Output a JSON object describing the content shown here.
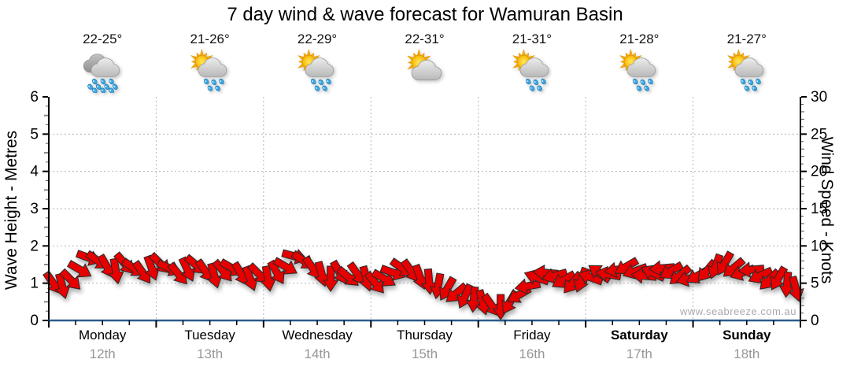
{
  "title": "7 day wind & wave forecast for Wamuran Basin",
  "watermark": "www.seabreeze.com.au",
  "left_axis": {
    "label": "Wave Height - Metres",
    "ticks": [
      0,
      1,
      2,
      3,
      4,
      5,
      6
    ],
    "max": 6
  },
  "right_axis": {
    "label": "Wind Speed - Knots",
    "ticks": [
      0,
      5,
      10,
      15,
      20,
      25,
      30
    ],
    "max": 30
  },
  "days": [
    {
      "label": "Monday",
      "date": "12th",
      "temp": "22-25°",
      "icon": "rain",
      "bold": false
    },
    {
      "label": "Tuesday",
      "date": "13th",
      "temp": "21-26°",
      "icon": "sun-cloud-rain",
      "bold": false
    },
    {
      "label": "Wednesday",
      "date": "14th",
      "temp": "22-29°",
      "icon": "sun-cloud-rain",
      "bold": false
    },
    {
      "label": "Thursday",
      "date": "15th",
      "temp": "22-31°",
      "icon": "sun-cloud",
      "bold": false
    },
    {
      "label": "Friday",
      "date": "16th",
      "temp": "21-31°",
      "icon": "sun-cloud-rain",
      "bold": false
    },
    {
      "label": "Saturday",
      "date": "17th",
      "temp": "21-28°",
      "icon": "sun-cloud-rain",
      "bold": true
    },
    {
      "label": "Sunday",
      "date": "18th",
      "temp": "21-27°",
      "icon": "sun-cloud-rain",
      "bold": true
    }
  ],
  "colors": {
    "arrow": "#e60000",
    "arrow_outline": "#2a2a2a",
    "axis": "#000000",
    "baseline": "#2a5d8c",
    "grid": "#b4b4b4",
    "date_text": "#979797",
    "watermark": "#aaaaaa"
  },
  "chart_data": {
    "type": "scatter",
    "title": "7 day wind & wave forecast for Wamuran Basin",
    "xlabel_categories": [
      "Monday 12th",
      "Tuesday 13th",
      "Wednesday 14th",
      "Thursday 15th",
      "Friday 16th",
      "Saturday 17th",
      "Sunday 18th"
    ],
    "ylabel_left": "Wave Height - Metres",
    "ylabel_right": "Wind Speed - Knots",
    "ylim_left": [
      0,
      6
    ],
    "ylim_right": [
      0,
      30
    ],
    "grid": "dotted horizontal at 1-5 m (5-25 kn) and vertical at day boundaries",
    "legend": "none",
    "notes": "Red arrows plot wind speed (knots, right axis) at ~2-hour steps; arrow rotation shows wind direction (0=east/right on screen, 90=south/down). Wave height series is flat at 0 m (blue line along bottom axis).",
    "steps_per_day": 12,
    "series": [
      {
        "name": "Wind Speed - Knots",
        "knots": [
          5.0,
          4.6,
          5.4,
          6.8,
          8.4,
          8.0,
          7.2,
          6.6,
          7.6,
          7.0,
          6.4,
          7.0,
          7.6,
          7.0,
          6.2,
          6.8,
          7.4,
          6.6,
          6.0,
          6.6,
          7.0,
          6.2,
          5.6,
          6.2,
          5.6,
          6.4,
          7.2,
          8.6,
          8.0,
          7.0,
          6.2,
          5.6,
          6.4,
          5.8,
          6.2,
          5.6,
          5.0,
          5.6,
          6.4,
          7.0,
          6.6,
          5.8,
          5.2,
          4.6,
          4.2,
          3.6,
          3.2,
          2.8,
          2.4,
          2.0,
          1.8,
          2.4,
          3.4,
          4.6,
          5.8,
          6.4,
          6.0,
          5.4,
          5.0,
          5.4,
          5.8,
          6.4,
          6.2,
          6.8,
          7.2,
          6.6,
          6.0,
          6.4,
          7.0,
          6.6,
          6.0,
          5.6,
          6.0,
          6.6,
          7.2,
          7.6,
          7.0,
          6.4,
          6.8,
          6.0,
          5.4,
          5.6,
          4.8,
          4.2
        ],
        "dir_deg": [
          55,
          75,
          45,
          30,
          20,
          35,
          60,
          80,
          50,
          35,
          55,
          70,
          45,
          25,
          50,
          65,
          40,
          55,
          75,
          50,
          30,
          60,
          70,
          45,
          80,
          60,
          30,
          15,
          35,
          55,
          75,
          90,
          60,
          40,
          55,
          75,
          50,
          30,
          20,
          35,
          55,
          70,
          85,
          100,
          120,
          140,
          115,
          95,
          75,
          55,
          90,
          120,
          150,
          170,
          200,
          185,
          165,
          150,
          130,
          110,
          200,
          215,
          190,
          170,
          150,
          160,
          185,
          205,
          175,
          150,
          140,
          165,
          150,
          130,
          110,
          120,
          140,
          160,
          175,
          155,
          135,
          120,
          95,
          75
        ]
      },
      {
        "name": "Wave Height - Metres",
        "constant_value": 0
      }
    ]
  }
}
